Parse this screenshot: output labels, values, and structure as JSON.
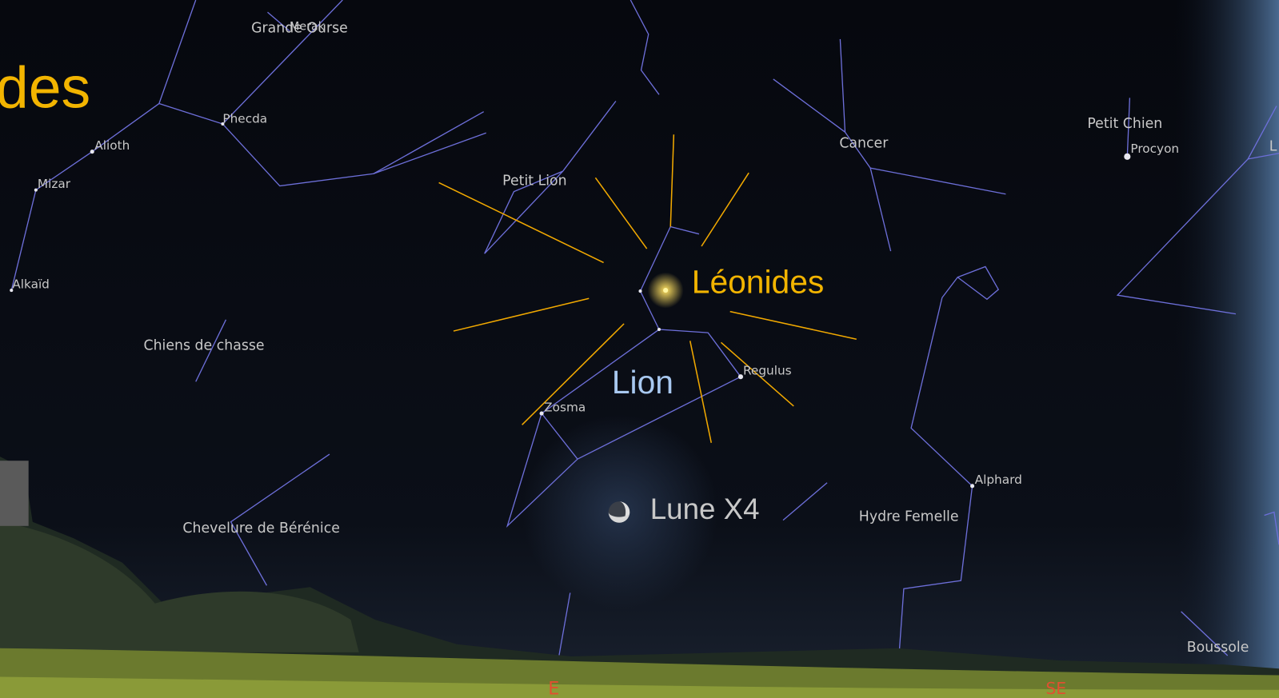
{
  "title": "des",
  "constellations": [
    "Grande Ourse",
    "Chiens de chasse",
    "Chevelure de Bérénice",
    "Petit Lion",
    "Cancer",
    "Petit Chien",
    "Hydre Femelle",
    "Boussole"
  ],
  "stars": [
    "Merak",
    "Phecda",
    "Alioth",
    "Mizar",
    "Alkaïd",
    "Zosma",
    "Regulus",
    "Procyon",
    "Alphard"
  ],
  "annotations": [
    "Léonides",
    "Lion",
    "Lune X4"
  ],
  "cardinals": [
    "E",
    "SE"
  ],
  "edge_label": "L"
}
